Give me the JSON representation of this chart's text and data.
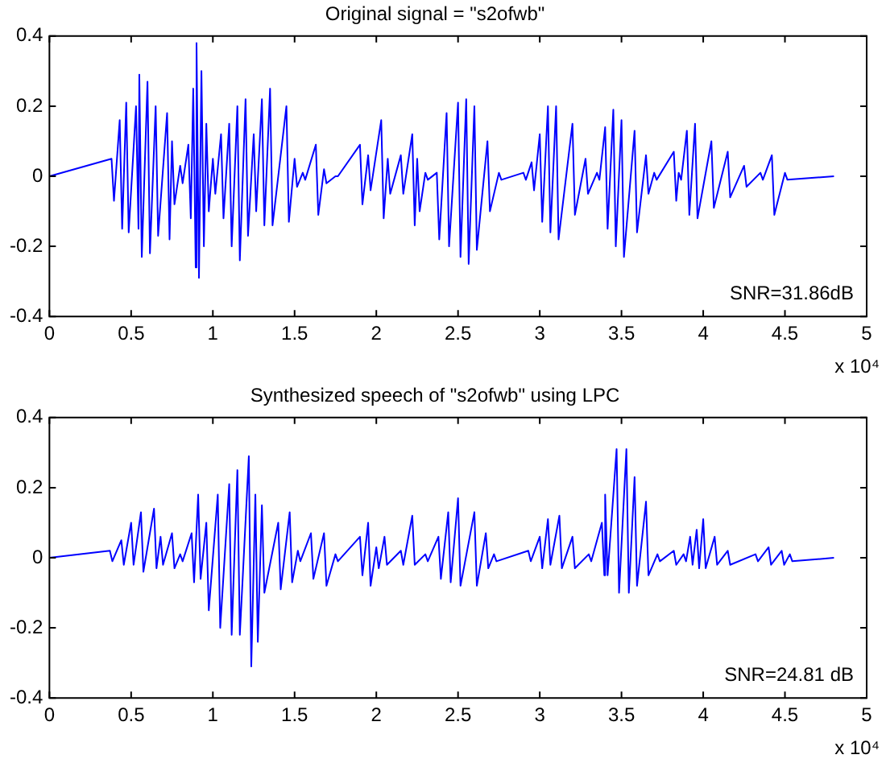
{
  "chart_data": [
    {
      "type": "line",
      "title": "Original signal = \"s2ofwb\"",
      "color": "#0000ff",
      "marker": "none",
      "legend": false,
      "xlim": [
        0,
        5
      ],
      "xticks": [
        0,
        0.5,
        1,
        1.5,
        2,
        2.5,
        3,
        3.5,
        4,
        4.5,
        5
      ],
      "ylim": [
        -0.4,
        0.4
      ],
      "yticks": [
        -0.4,
        -0.2,
        0,
        0.2,
        0.4
      ],
      "annotations": [
        "SNR=31.86dB",
        "x 10⁴"
      ],
      "x": [
        0,
        0.38,
        0.395,
        0.43,
        0.445,
        0.47,
        0.485,
        0.53,
        0.545,
        0.55,
        0.565,
        0.6,
        0.615,
        0.65,
        0.665,
        0.72,
        0.735,
        0.75,
        0.765,
        0.8,
        0.815,
        0.85,
        0.865,
        0.88,
        0.895,
        0.9,
        0.915,
        0.93,
        0.945,
        0.96,
        0.975,
        1.0,
        1.015,
        1.05,
        1.065,
        1.1,
        1.115,
        1.15,
        1.165,
        1.2,
        1.215,
        1.25,
        1.265,
        1.3,
        1.315,
        1.35,
        1.365,
        1.45,
        1.465,
        1.5,
        1.515,
        1.55,
        1.565,
        1.63,
        1.645,
        1.68,
        1.695,
        1.75,
        1.765,
        1.9,
        1.915,
        1.95,
        1.965,
        2.03,
        2.045,
        2.07,
        2.085,
        2.15,
        2.165,
        2.22,
        2.235,
        2.25,
        2.265,
        2.3,
        2.315,
        2.37,
        2.385,
        2.43,
        2.445,
        2.5,
        2.515,
        2.55,
        2.565,
        2.6,
        2.615,
        2.68,
        2.695,
        2.75,
        2.765,
        2.9,
        2.915,
        2.95,
        2.965,
        3.0,
        3.015,
        3.05,
        3.065,
        3.1,
        3.115,
        3.2,
        3.215,
        3.28,
        3.295,
        3.35,
        3.365,
        3.4,
        3.415,
        3.45,
        3.465,
        3.5,
        3.515,
        3.58,
        3.595,
        3.65,
        3.665,
        3.7,
        3.715,
        3.82,
        3.835,
        3.85,
        3.865,
        3.9,
        3.915,
        3.95,
        3.965,
        4.05,
        4.065,
        4.15,
        4.165,
        4.25,
        4.265,
        4.35,
        4.365,
        4.42,
        4.435,
        4.5,
        4.515,
        4.8
      ],
      "values": [
        0,
        0.05,
        -0.07,
        0.16,
        -0.15,
        0.21,
        -0.16,
        0.2,
        -0.15,
        0.29,
        -0.23,
        0.27,
        -0.22,
        0.2,
        -0.17,
        0.18,
        -0.18,
        0.1,
        -0.08,
        0.03,
        -0.02,
        0.09,
        -0.12,
        0.25,
        -0.26,
        0.38,
        -0.29,
        0.3,
        -0.2,
        0.15,
        -0.1,
        0.05,
        -0.05,
        0.12,
        -0.12,
        0.15,
        -0.2,
        0.2,
        -0.24,
        0.22,
        -0.17,
        0.12,
        -0.1,
        0.22,
        -0.14,
        0.25,
        -0.14,
        0.2,
        -0.13,
        0.05,
        -0.03,
        0.01,
        -0.01,
        0.09,
        -0.11,
        0.02,
        -0.02,
        0,
        0,
        0.09,
        -0.08,
        0.06,
        -0.04,
        0.16,
        -0.12,
        0.05,
        -0.05,
        0.06,
        -0.05,
        0.12,
        -0.14,
        0.05,
        -0.1,
        0.01,
        -0.01,
        0.01,
        -0.18,
        0.18,
        -0.2,
        0.21,
        -0.23,
        0.22,
        -0.25,
        0.2,
        -0.21,
        0.1,
        -0.1,
        0.01,
        -0.01,
        0.01,
        -0.01,
        0.04,
        -0.04,
        0.12,
        -0.13,
        0.2,
        -0.16,
        0.2,
        -0.18,
        0.15,
        -0.11,
        0.05,
        -0.05,
        0.01,
        -0.01,
        0.14,
        -0.15,
        0.19,
        -0.2,
        0.16,
        -0.23,
        0.13,
        -0.16,
        0.06,
        -0.05,
        0.01,
        -0.01,
        0.07,
        -0.07,
        0.01,
        -0.01,
        0.13,
        -0.11,
        0.15,
        -0.12,
        0.1,
        -0.09,
        0.07,
        -0.06,
        0.03,
        -0.03,
        0.01,
        -0.01,
        0.06,
        -0.11,
        0.01,
        -0.01,
        0
      ]
    },
    {
      "type": "line",
      "title": "Synthesized speech of \"s2ofwb\" using LPC",
      "color": "#0000ff",
      "marker": "none",
      "legend": false,
      "xlim": [
        0,
        5
      ],
      "xticks": [
        0,
        0.5,
        1,
        1.5,
        2,
        2.5,
        3,
        3.5,
        4,
        4.5,
        5
      ],
      "ylim": [
        -0.4,
        0.4
      ],
      "yticks": [
        -0.4,
        -0.2,
        0,
        0.2,
        0.4
      ],
      "annotations": [
        "SNR=24.81 dB",
        "x 10⁴"
      ],
      "x": [
        0,
        0.37,
        0.385,
        0.44,
        0.455,
        0.5,
        0.515,
        0.56,
        0.575,
        0.64,
        0.655,
        0.68,
        0.695,
        0.75,
        0.765,
        0.8,
        0.815,
        0.87,
        0.885,
        0.91,
        0.925,
        0.96,
        0.975,
        1.03,
        1.045,
        1.1,
        1.115,
        1.15,
        1.165,
        1.22,
        1.235,
        1.26,
        1.275,
        1.3,
        1.315,
        1.4,
        1.415,
        1.47,
        1.485,
        1.52,
        1.535,
        1.6,
        1.615,
        1.68,
        1.695,
        1.75,
        1.765,
        1.9,
        1.915,
        1.95,
        1.965,
        2.0,
        2.015,
        2.05,
        2.065,
        2.15,
        2.165,
        2.22,
        2.235,
        2.3,
        2.315,
        2.38,
        2.395,
        2.44,
        2.455,
        2.5,
        2.515,
        2.6,
        2.615,
        2.67,
        2.685,
        2.72,
        2.735,
        2.93,
        2.945,
        3.0,
        3.015,
        3.05,
        3.065,
        3.12,
        3.135,
        3.2,
        3.215,
        3.3,
        3.315,
        3.38,
        3.395,
        3.4,
        3.415,
        3.47,
        3.485,
        3.53,
        3.545,
        3.58,
        3.595,
        3.65,
        3.665,
        3.72,
        3.735,
        3.82,
        3.835,
        3.88,
        3.895,
        3.92,
        3.935,
        3.96,
        3.975,
        4.0,
        4.015,
        4.07,
        4.085,
        4.15,
        4.165,
        4.32,
        4.335,
        4.4,
        4.415,
        4.48,
        4.495,
        4.53,
        4.545,
        4.8
      ],
      "values": [
        0,
        0.02,
        -0.01,
        0.05,
        -0.02,
        0.1,
        -0.02,
        0.13,
        -0.04,
        0.14,
        -0.03,
        0.06,
        -0.02,
        0.07,
        -0.03,
        0.01,
        -0.01,
        0.07,
        -0.07,
        0.18,
        -0.06,
        0.1,
        -0.15,
        0.18,
        -0.2,
        0.21,
        -0.22,
        0.25,
        -0.22,
        0.29,
        -0.31,
        0.18,
        -0.24,
        0.15,
        -0.1,
        0.1,
        -0.09,
        0.13,
        -0.07,
        0.02,
        -0.01,
        0.07,
        -0.06,
        0.07,
        -0.08,
        0.01,
        -0.01,
        0.06,
        -0.05,
        0.1,
        -0.08,
        0.03,
        -0.03,
        0.06,
        -0.02,
        0.02,
        -0.02,
        0.12,
        -0.02,
        0.01,
        -0.01,
        0.06,
        -0.06,
        0.13,
        -0.07,
        0.17,
        -0.08,
        0.13,
        -0.08,
        0.07,
        -0.03,
        0.01,
        -0.01,
        0.02,
        -0.01,
        0.06,
        -0.03,
        0.11,
        -0.02,
        0.12,
        -0.03,
        0.06,
        -0.03,
        0.01,
        -0.01,
        0.1,
        -0.05,
        0.18,
        -0.05,
        0.31,
        -0.1,
        0.31,
        -0.1,
        0.23,
        -0.08,
        0.16,
        -0.05,
        0.01,
        -0.01,
        0.02,
        -0.02,
        0.01,
        -0.01,
        0.06,
        -0.02,
        0.08,
        -0.03,
        0.11,
        -0.03,
        0.06,
        -0.02,
        0.02,
        -0.02,
        0.01,
        -0.01,
        0.03,
        -0.02,
        0.02,
        -0.02,
        0.01,
        -0.01,
        0
      ]
    }
  ]
}
